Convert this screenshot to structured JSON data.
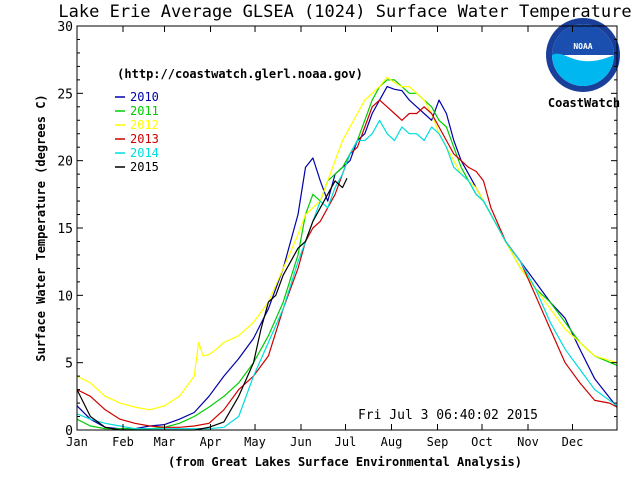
{
  "chart_data": {
    "type": "line",
    "title": "Lake Erie Average GLSEA (1024) Surface Water Temperature",
    "subtitle": "(http://coastwatch.glerl.noaa.gov)",
    "xlabel": "(from Great Lakes Surface Environmental Analysis)",
    "ylabel": "Surface Water Temperature (degrees C)",
    "timestamp": "Fri Jul  3 06:40:02 2015",
    "logo": {
      "badge": "NOAA",
      "label": "CoastWatch"
    },
    "ylim": [
      0,
      30
    ],
    "yticks": [
      0,
      5,
      10,
      15,
      20,
      25,
      30
    ],
    "xlim": [
      1,
      365
    ],
    "xticks": [
      {
        "label": "Jan",
        "day": 1
      },
      {
        "label": "Feb",
        "day": 32
      },
      {
        "label": "Mar",
        "day": 60
      },
      {
        "label": "Apr",
        "day": 91
      },
      {
        "label": "May",
        "day": 121
      },
      {
        "label": "Jun",
        "day": 152
      },
      {
        "label": "Jul",
        "day": 182
      },
      {
        "label": "Aug",
        "day": 213
      },
      {
        "label": "Sep",
        "day": 244
      },
      {
        "label": "Oct",
        "day": 274
      },
      {
        "label": "Nov",
        "day": 305
      },
      {
        "label": "Dec",
        "day": 335
      }
    ],
    "x_unit": "day of year",
    "legend_position": "top-left",
    "grid": false,
    "series": [
      {
        "name": "2010",
        "color": "#0000aa",
        "x": [
          1,
          10,
          20,
          30,
          40,
          50,
          60,
          70,
          80,
          90,
          100,
          110,
          120,
          130,
          140,
          150,
          155,
          160,
          165,
          170,
          175,
          180,
          185,
          190,
          195,
          200,
          205,
          210,
          215,
          220,
          225,
          230,
          235,
          240,
          245,
          250,
          255,
          260,
          265,
          270,
          275,
          280,
          290,
          300,
          310,
          320,
          330,
          340,
          350,
          365
        ],
        "y": [
          1.8,
          0.8,
          0.2,
          0.1,
          0.1,
          0.3,
          0.4,
          0.8,
          1.3,
          2.5,
          4.0,
          5.3,
          6.8,
          9.0,
          12.0,
          16.0,
          19.5,
          20.2,
          18.5,
          17.0,
          19.0,
          19.5,
          20.0,
          21.5,
          22.0,
          23.5,
          24.5,
          25.5,
          25.3,
          25.2,
          24.5,
          24.0,
          23.5,
          23.0,
          24.5,
          23.5,
          21.5,
          20.0,
          19.0,
          18.0,
          17.0,
          16.0,
          14.0,
          12.5,
          11.0,
          9.5,
          8.3,
          6.0,
          3.8,
          1.7
        ]
      },
      {
        "name": "2011",
        "color": "#00cc00",
        "x": [
          1,
          10,
          20,
          30,
          40,
          50,
          60,
          70,
          80,
          90,
          100,
          110,
          120,
          130,
          140,
          150,
          155,
          160,
          165,
          170,
          175,
          180,
          185,
          190,
          195,
          200,
          205,
          210,
          215,
          220,
          225,
          230,
          235,
          240,
          245,
          250,
          255,
          260,
          265,
          270,
          275,
          280,
          290,
          300,
          310,
          320,
          330,
          340,
          350,
          365
        ],
        "y": [
          0.8,
          0.3,
          0.1,
          0.1,
          0.1,
          0.1,
          0.2,
          0.5,
          1.0,
          1.7,
          2.5,
          3.5,
          5.0,
          7.0,
          9.5,
          13.0,
          16.0,
          17.5,
          17.0,
          18.5,
          19.0,
          19.5,
          20.5,
          21.5,
          23.0,
          24.5,
          25.5,
          26.0,
          26.0,
          25.5,
          25.0,
          25.0,
          24.5,
          24.0,
          23.0,
          22.5,
          21.0,
          19.5,
          18.5,
          17.5,
          17.0,
          16.0,
          14.0,
          12.0,
          10.5,
          9.5,
          8.0,
          6.5,
          5.5,
          4.8
        ]
      },
      {
        "name": "2012",
        "color": "#ffff00",
        "x": [
          1,
          10,
          20,
          30,
          40,
          50,
          60,
          70,
          80,
          83,
          86,
          90,
          95,
          100,
          110,
          120,
          130,
          140,
          150,
          155,
          160,
          165,
          170,
          175,
          180,
          185,
          190,
          195,
          200,
          205,
          210,
          215,
          220,
          225,
          230,
          235,
          240,
          245,
          250,
          255,
          260,
          265,
          270,
          275,
          280,
          290,
          300,
          310,
          320,
          330,
          340,
          350,
          365
        ],
        "y": [
          4.0,
          3.5,
          2.5,
          2.0,
          1.7,
          1.5,
          1.8,
          2.5,
          4.0,
          6.5,
          5.5,
          5.6,
          6.0,
          6.5,
          7.0,
          8.0,
          9.5,
          12.0,
          14.5,
          16.0,
          16.5,
          17.0,
          18.5,
          20.0,
          21.5,
          22.5,
          23.5,
          24.5,
          25.0,
          25.5,
          26.2,
          25.8,
          25.5,
          25.5,
          25.0,
          24.5,
          23.5,
          22.0,
          21.0,
          20.0,
          19.0,
          18.5,
          18.0,
          17.0,
          16.0,
          14.0,
          12.0,
          10.5,
          9.0,
          7.5,
          6.5,
          5.5,
          5.0
        ]
      },
      {
        "name": "2013",
        "color": "#cc0000",
        "x": [
          1,
          10,
          20,
          30,
          40,
          50,
          60,
          70,
          80,
          90,
          100,
          110,
          120,
          130,
          140,
          150,
          155,
          160,
          165,
          170,
          175,
          180,
          185,
          190,
          195,
          200,
          205,
          210,
          215,
          220,
          225,
          230,
          235,
          240,
          245,
          250,
          255,
          260,
          265,
          270,
          275,
          280,
          290,
          300,
          310,
          320,
          330,
          340,
          350,
          360,
          365
        ],
        "y": [
          3.0,
          2.5,
          1.5,
          0.8,
          0.5,
          0.3,
          0.2,
          0.2,
          0.3,
          0.5,
          1.5,
          3.0,
          4.0,
          5.5,
          9.0,
          12.0,
          14.0,
          15.0,
          15.5,
          16.5,
          17.5,
          19.0,
          20.5,
          21.0,
          22.5,
          24.0,
          24.5,
          24.0,
          23.5,
          23.0,
          23.5,
          23.5,
          24.0,
          23.5,
          22.5,
          21.5,
          20.5,
          20.0,
          19.5,
          19.2,
          18.5,
          16.5,
          14.0,
          12.5,
          10.0,
          7.5,
          5.0,
          3.5,
          2.2,
          2.0,
          1.7
        ]
      },
      {
        "name": "2014",
        "color": "#00dddd",
        "x": [
          1,
          10,
          20,
          30,
          40,
          50,
          60,
          70,
          80,
          90,
          100,
          110,
          120,
          130,
          140,
          150,
          155,
          160,
          165,
          170,
          175,
          180,
          185,
          190,
          195,
          200,
          205,
          210,
          215,
          220,
          225,
          230,
          235,
          240,
          245,
          250,
          255,
          260,
          265,
          270,
          275,
          280,
          290,
          300,
          310,
          320,
          330,
          340,
          350,
          365
        ],
        "y": [
          1.2,
          0.8,
          0.5,
          0.3,
          0.1,
          0.1,
          0.1,
          0.1,
          0.1,
          0.1,
          0.2,
          1.0,
          4.0,
          6.5,
          9.0,
          12.5,
          14.0,
          15.5,
          17.0,
          16.5,
          18.0,
          19.0,
          20.5,
          21.5,
          21.5,
          22.0,
          23.0,
          22.0,
          21.5,
          22.5,
          22.0,
          22.0,
          21.5,
          22.5,
          22.0,
          21.0,
          19.5,
          19.0,
          18.5,
          17.5,
          17.0,
          16.0,
          14.0,
          12.5,
          10.5,
          8.0,
          6.0,
          4.5,
          3.0,
          1.8
        ]
      },
      {
        "name": "2015",
        "color": "#000000",
        "x": [
          1,
          10,
          20,
          30,
          40,
          50,
          60,
          70,
          80,
          90,
          100,
          110,
          120,
          125,
          130,
          135,
          140,
          145,
          150,
          155,
          160,
          165,
          170,
          175,
          180,
          183
        ],
        "y": [
          3.0,
          1.0,
          0.2,
          0.0,
          0.0,
          0.0,
          0.0,
          0.0,
          0.0,
          0.2,
          0.6,
          2.5,
          5.0,
          7.5,
          9.5,
          10.0,
          11.5,
          12.5,
          13.5,
          14.0,
          15.5,
          16.5,
          17.5,
          18.5,
          18.0,
          18.7
        ]
      }
    ]
  }
}
